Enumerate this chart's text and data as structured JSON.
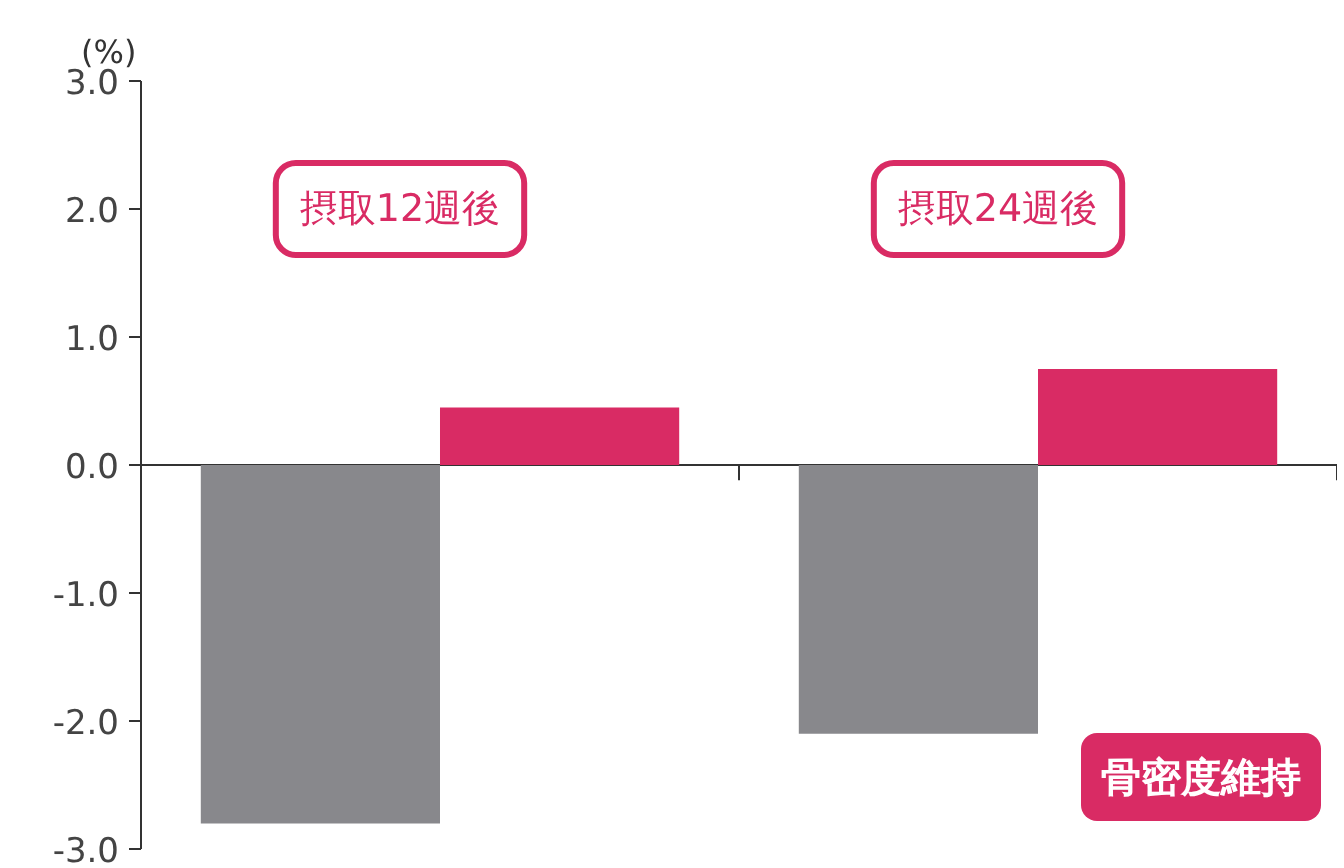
{
  "chart_data": {
    "type": "bar",
    "ylabel": "(%)",
    "categories": [
      null,
      null
    ],
    "series": [
      {
        "color": "#88888c",
        "values": [
          -2.8,
          -2.1
        ]
      },
      {
        "color": "#d92b64",
        "values": [
          0.45,
          0.75
        ]
      }
    ],
    "ylim": [
      -3.0,
      3.0
    ],
    "yticks": [
      {
        "value": 3.0,
        "label": "3.0"
      },
      {
        "value": 2.0,
        "label": "2.0"
      },
      {
        "value": 1.0,
        "label": "1.0"
      },
      {
        "value": 0,
        "label": "0.0"
      },
      {
        "value": -1.0,
        "label": "-1.0"
      },
      {
        "value": -2.0,
        "label": "-2.0"
      },
      {
        "value": -3.0,
        "label": "-3.0"
      }
    ],
    "annotations": [
      "摂取12週後",
      "摂取24週後",
      "骨密度維持"
    ]
  }
}
